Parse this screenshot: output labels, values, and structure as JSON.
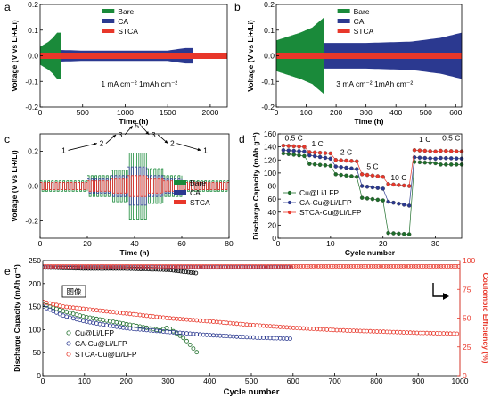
{
  "colors": {
    "bare": "#1a8a3a",
    "ca": "#2b3990",
    "stca": "#e8372a",
    "cu_dots": "#1e6e2a"
  },
  "chart_data": [
    {
      "panel": "a",
      "type": "line",
      "xlabel": "Time (h)",
      "ylabel": "Voltage (V vs Li+/Li)",
      "xlim": [
        0,
        2200
      ],
      "ylim": [
        -0.2,
        0.2
      ],
      "xticks": [
        0,
        500,
        1000,
        1500,
        2000
      ],
      "yticks": [
        -0.2,
        -0.1,
        0.0,
        0.1,
        0.2
      ],
      "annotation": "1 mA cm⁻²  1mAh cm⁻²",
      "legend": [
        "Bare",
        "CA",
        "STCA"
      ],
      "series": [
        {
          "name": "Bare",
          "x": [
            0,
            50,
            100,
            150,
            200,
            250
          ],
          "amplitude": [
            0.035,
            0.045,
            0.055,
            0.07,
            0.09,
            0.09
          ]
        },
        {
          "name": "CA",
          "x": [
            0,
            500,
            1000,
            1500,
            1700,
            1800
          ],
          "amplitude": [
            0.025,
            0.02,
            0.02,
            0.02,
            0.03,
            0.03
          ]
        },
        {
          "name": "STCA",
          "x": [
            0,
            500,
            1000,
            1500,
            2000,
            2200
          ],
          "amplitude": [
            0.012,
            0.012,
            0.012,
            0.012,
            0.012,
            0.012
          ]
        }
      ]
    },
    {
      "panel": "b",
      "type": "line",
      "xlabel": "Time (h)",
      "ylabel": "Voltage (V vs Li+/Li)",
      "xlim": [
        0,
        620
      ],
      "ylim": [
        -0.2,
        0.2
      ],
      "xticks": [
        0,
        100,
        200,
        300,
        400,
        500,
        600
      ],
      "yticks": [
        -0.2,
        -0.1,
        0.0,
        0.1,
        0.2
      ],
      "annotation": "3 mA cm⁻²  1mAh cm⁻²",
      "legend": [
        "Bare",
        "CA",
        "STCA"
      ],
      "series": [
        {
          "name": "Bare",
          "x": [
            0,
            40,
            80,
            120,
            150,
            160
          ],
          "amplitude": [
            0.06,
            0.075,
            0.09,
            0.11,
            0.14,
            0.15
          ]
        },
        {
          "name": "CA",
          "x": [
            0,
            150,
            300,
            450,
            550,
            620
          ],
          "amplitude": [
            0.06,
            0.05,
            0.05,
            0.055,
            0.07,
            0.09
          ]
        },
        {
          "name": "STCA",
          "x": [
            0,
            150,
            300,
            450,
            620
          ],
          "amplitude": [
            0.012,
            0.012,
            0.012,
            0.012,
            0.012
          ]
        }
      ]
    },
    {
      "panel": "c",
      "type": "line",
      "xlabel": "Time (h)",
      "ylabel": "Voltage (V vs Li+/Li)",
      "xlim": [
        0,
        80
      ],
      "ylim": [
        -0.3,
        0.3
      ],
      "xticks": [
        0,
        20,
        40,
        60,
        80
      ],
      "yticks": [
        -0.2,
        0.0,
        0.2
      ],
      "rate_labels": [
        {
          "text": "1",
          "x": 10,
          "y": 0.19
        },
        {
          "text": "2",
          "x": 26,
          "y": 0.23
        },
        {
          "text": "3",
          "x": 34,
          "y": 0.28
        },
        {
          "text": "5",
          "x": 41,
          "y": 0.33
        },
        {
          "text": "3",
          "x": 48,
          "y": 0.28
        },
        {
          "text": "2",
          "x": 56,
          "y": 0.23
        },
        {
          "text": "1",
          "x": 70,
          "y": 0.19
        }
      ],
      "legend": [
        "Bare",
        "CA",
        "STCA"
      ],
      "series": [
        {
          "name": "Bare",
          "segments": [
            [
              0,
              20,
              0.03
            ],
            [
              20,
              30,
              0.06
            ],
            [
              30,
              37,
              0.09
            ],
            [
              37,
              45,
              0.19
            ],
            [
              45,
              52,
              0.1
            ],
            [
              52,
              60,
              0.06
            ],
            [
              60,
              80,
              0.03
            ]
          ]
        },
        {
          "name": "CA",
          "segments": [
            [
              0,
              20,
              0.02
            ],
            [
              20,
              30,
              0.04
            ],
            [
              30,
              37,
              0.06
            ],
            [
              37,
              45,
              0.11
            ],
            [
              45,
              52,
              0.06
            ],
            [
              52,
              60,
              0.04
            ],
            [
              60,
              80,
              0.02
            ]
          ]
        },
        {
          "name": "STCA",
          "segments": [
            [
              0,
              20,
              0.02
            ],
            [
              20,
              30,
              0.03
            ],
            [
              30,
              37,
              0.04
            ],
            [
              37,
              45,
              0.06
            ],
            [
              45,
              52,
              0.04
            ],
            [
              52,
              60,
              0.03
            ],
            [
              60,
              80,
              0.02
            ]
          ]
        }
      ]
    },
    {
      "panel": "d",
      "type": "scatter",
      "xlabel": "Cycle number",
      "ylabel": "Discharge Capacity (mAh g⁻¹)",
      "xlim": [
        0,
        35
      ],
      "ylim": [
        0,
        160
      ],
      "xticks": [
        0,
        10,
        20,
        30
      ],
      "yticks": [
        0,
        20,
        40,
        60,
        80,
        100,
        120,
        140,
        160
      ],
      "rate_labels": [
        {
          "text": "0.5 C",
          "x": 3,
          "y": 150
        },
        {
          "text": "1 C",
          "x": 7.5,
          "y": 141
        },
        {
          "text": "2 C",
          "x": 13,
          "y": 128
        },
        {
          "text": "5 C",
          "x": 18,
          "y": 106
        },
        {
          "text": "10 C",
          "x": 23,
          "y": 89
        },
        {
          "text": "1 C",
          "x": 28,
          "y": 148
        },
        {
          "text": "0.5 C",
          "x": 33,
          "y": 150
        }
      ],
      "legend": [
        "Cu@Li/LFP",
        "CA-Cu@Li/LFP",
        "STCA-Cu@Li/LFP"
      ],
      "series": [
        {
          "name": "Cu@Li/LFP",
          "steps": [
            [
              1,
              5,
              130,
              126
            ],
            [
              6,
              10,
              114,
              111
            ],
            [
              11,
              15,
              98,
              94
            ],
            [
              16,
              20,
              62,
              58
            ],
            [
              21,
              25,
              8,
              6
            ],
            [
              26,
              30,
              117,
              115
            ],
            [
              31,
              35,
              113,
              113
            ]
          ]
        },
        {
          "name": "CA-Cu@Li/LFP",
          "steps": [
            [
              1,
              5,
              135,
              133
            ],
            [
              6,
              10,
              127,
              122
            ],
            [
              11,
              15,
              110,
              106
            ],
            [
              16,
              20,
              80,
              76
            ],
            [
              21,
              25,
              56,
              50
            ],
            [
              26,
              30,
              124,
              122
            ],
            [
              31,
              35,
              123,
              122
            ]
          ]
        },
        {
          "name": "STCA-Cu@Li/LFP",
          "steps": [
            [
              1,
              5,
              142,
              140
            ],
            [
              6,
              10,
              132,
              130
            ],
            [
              11,
              15,
              120,
              118
            ],
            [
              16,
              20,
              98,
              94
            ],
            [
              21,
              25,
              83,
              80
            ],
            [
              26,
              30,
              135,
              133
            ],
            [
              31,
              35,
              134,
              133
            ]
          ]
        }
      ]
    },
    {
      "panel": "e",
      "type": "scatter",
      "xlabel": "Cycle number",
      "ylabel": "Discharge Capacity (mAh g⁻¹)",
      "y2label": "Coulombic Efficiency (%)",
      "xlim": [
        0,
        1000
      ],
      "ylim": [
        0,
        250
      ],
      "y2lim": [
        0,
        100
      ],
      "xticks": [
        0,
        100,
        200,
        300,
        400,
        500,
        600,
        700,
        800,
        900,
        1000
      ],
      "yticks": [
        0,
        50,
        100,
        150,
        200,
        250
      ],
      "y2ticks": [
        0,
        25,
        50,
        75,
        100
      ],
      "inset_label": "图像",
      "legend": [
        "Cu@Li/LFP",
        "CA-Cu@Li/LFP",
        "STCA-Cu@Li/LFP"
      ],
      "series": [
        {
          "name": "Cu@Li/LFP",
          "x": [
            1,
            50,
            100,
            150,
            200,
            250,
            280,
            300,
            320,
            340,
            360,
            370
          ],
          "y": [
            155,
            140,
            128,
            120,
            112,
            104,
            98,
            105,
            92,
            80,
            60,
            50
          ]
        },
        {
          "name": "CA-Cu@Li/LFP",
          "x": [
            1,
            50,
            100,
            150,
            200,
            300,
            400,
            500,
            600
          ],
          "y": [
            150,
            130,
            118,
            110,
            103,
            95,
            88,
            83,
            80
          ]
        },
        {
          "name": "STCA-Cu@Li/LFP",
          "x": [
            1,
            50,
            100,
            200,
            300,
            400,
            500,
            600,
            700,
            800,
            900,
            1000
          ],
          "y": [
            160,
            150,
            145,
            135,
            125,
            118,
            110,
            104,
            99,
            96,
            93,
            91
          ]
        },
        {
          "name": "Cu@Li/LFP CE",
          "x": [
            1,
            100,
            200,
            300,
            370
          ],
          "y": [
            94,
            93,
            93,
            92,
            89
          ]
        },
        {
          "name": "CA-Cu@Li/LFP CE",
          "x": [
            1,
            200,
            400,
            600
          ],
          "y": [
            94,
            94,
            94,
            94
          ]
        },
        {
          "name": "STCA-Cu@Li/LFP CE",
          "x": [
            1,
            200,
            400,
            600,
            800,
            1000
          ],
          "y": [
            95,
            95,
            95,
            95,
            95,
            95
          ]
        }
      ]
    }
  ]
}
